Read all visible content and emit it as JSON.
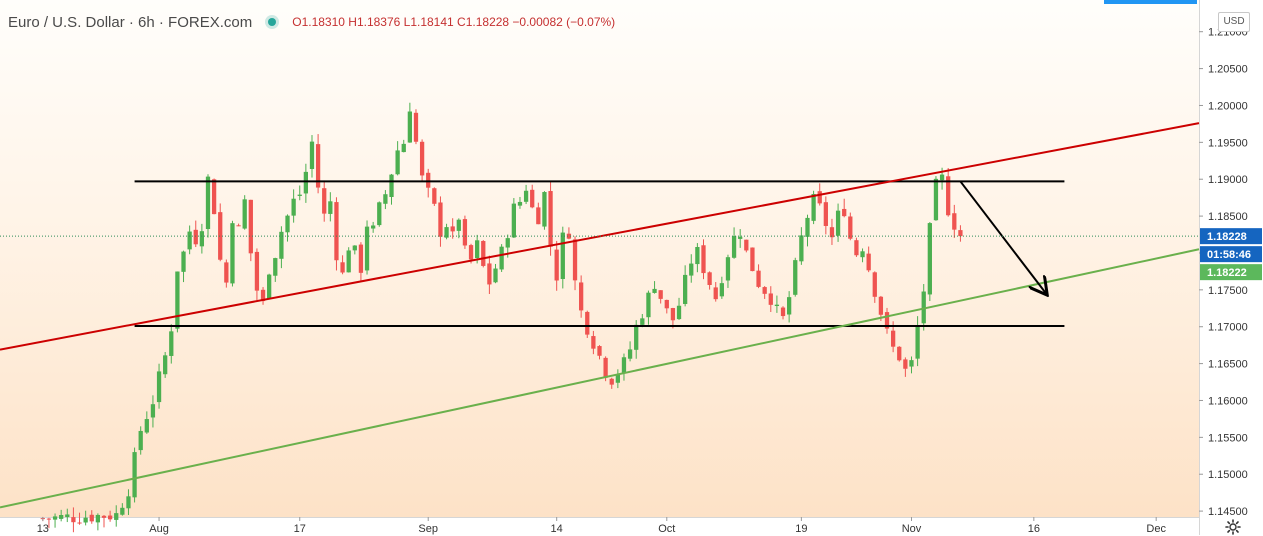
{
  "header": {
    "title": "Euro / U.S. Dollar · 6h · FOREX.com",
    "ohlc": "O1.18310  H1.18376  L1.18141  C1.18228  −0.00082 (−0.07%)"
  },
  "currency_button": "USD",
  "price_tags": {
    "last": "1.18228",
    "countdown": "01:58:46",
    "bid": "1.18222"
  },
  "colors": {
    "up": "#4caf50",
    "down": "#ef5350",
    "resistance_trendline": "#cc0000",
    "support_trendline": "#6ab04c",
    "range_lines": "#000000",
    "last_price_tag": "#1565c0",
    "bid_tag": "#5cb85c"
  },
  "icons": [
    "status-dot-icon",
    "settings-gear-icon"
  ],
  "chart_data": {
    "type": "candlestick",
    "symbol": "EURUSD",
    "interval": "6h",
    "yticks": [
      "1.21000",
      "1.20500",
      "1.20000",
      "1.19500",
      "1.19000",
      "1.18500",
      "1.18000",
      "1.17500",
      "1.17000",
      "1.16500",
      "1.16000",
      "1.15500",
      "1.15000",
      "1.14500"
    ],
    "ytick_values": [
      1.21,
      1.205,
      1.2,
      1.195,
      1.19,
      1.185,
      1.18,
      1.175,
      1.17,
      1.165,
      1.16,
      1.155,
      1.15,
      1.145
    ],
    "xticks": [
      "13",
      "Aug",
      "17",
      "Sep",
      "14",
      "Oct",
      "19",
      "Nov",
      "16",
      "Dec"
    ],
    "xtick_values": [
      0,
      19,
      42,
      63,
      84,
      102,
      124,
      142,
      162,
      182
    ],
    "x_range": [
      -7,
      189
    ],
    "y_range": [
      1.1442,
      1.2143
    ],
    "last_price": 1.18228,
    "bid_price": 1.18222,
    "anchors": [
      [
        0,
        1.144
      ],
      [
        12,
        1.1445
      ],
      [
        14,
        1.148
      ],
      [
        15,
        1.152
      ],
      [
        16,
        1.156
      ],
      [
        18,
        1.16
      ],
      [
        20,
        1.166
      ],
      [
        21,
        1.17
      ],
      [
        22,
        1.178
      ],
      [
        23,
        1.18
      ],
      [
        24,
        1.183
      ],
      [
        25,
        1.182
      ],
      [
        26,
        1.184
      ],
      [
        27,
        1.19
      ],
      [
        28,
        1.186
      ],
      [
        29,
        1.179
      ],
      [
        30,
        1.176
      ],
      [
        31,
        1.185
      ],
      [
        32,
        1.183
      ],
      [
        33,
        1.187
      ],
      [
        34,
        1.18
      ],
      [
        35,
        1.175
      ],
      [
        36,
        1.173
      ],
      [
        37,
        1.178
      ],
      [
        38,
        1.18
      ],
      [
        39,
        1.183
      ],
      [
        40,
        1.185
      ],
      [
        41,
        1.187
      ],
      [
        42,
        1.188
      ],
      [
        43,
        1.191
      ],
      [
        44,
        1.195
      ],
      [
        45,
        1.189
      ],
      [
        46,
        1.185
      ],
      [
        47,
        1.187
      ],
      [
        48,
        1.18
      ],
      [
        49,
        1.177
      ],
      [
        50,
        1.181
      ],
      [
        51,
        1.18
      ],
      [
        52,
        1.178
      ],
      [
        53,
        1.184
      ],
      [
        54,
        1.183
      ],
      [
        55,
        1.186
      ],
      [
        56,
        1.188
      ],
      [
        57,
        1.191
      ],
      [
        58,
        1.194
      ],
      [
        59,
        1.195
      ],
      [
        60,
        1.2
      ],
      [
        61,
        1.195
      ],
      [
        62,
        1.19
      ],
      [
        63,
        1.188
      ],
      [
        64,
        1.186
      ],
      [
        65,
        1.183
      ],
      [
        66,
        1.184
      ],
      [
        67,
        1.182
      ],
      [
        68,
        1.185
      ],
      [
        69,
        1.18
      ],
      [
        70,
        1.179
      ],
      [
        71,
        1.181
      ],
      [
        72,
        1.178
      ],
      [
        73,
        1.176
      ],
      [
        74,
        1.178
      ],
      [
        75,
        1.18
      ],
      [
        76,
        1.183
      ],
      [
        77,
        1.186
      ],
      [
        78,
        1.187
      ],
      [
        79,
        1.189
      ],
      [
        80,
        1.186
      ],
      [
        81,
        1.185
      ],
      [
        82,
        1.188
      ],
      [
        83,
        1.181
      ],
      [
        84,
        1.177
      ],
      [
        85,
        1.182
      ],
      [
        86,
        1.183
      ],
      [
        87,
        1.176
      ],
      [
        88,
        1.172
      ],
      [
        89,
        1.17
      ],
      [
        90,
        1.168
      ],
      [
        91,
        1.166
      ],
      [
        92,
        1.164
      ],
      [
        93,
        1.163
      ],
      [
        94,
        1.164
      ],
      [
        95,
        1.165
      ],
      [
        96,
        1.167
      ],
      [
        97,
        1.17
      ],
      [
        98,
        1.172
      ],
      [
        99,
        1.174
      ],
      [
        100,
        1.176
      ],
      [
        101,
        1.174
      ],
      [
        102,
        1.172
      ],
      [
        103,
        1.171
      ],
      [
        104,
        1.173
      ],
      [
        105,
        1.176
      ],
      [
        106,
        1.179
      ],
      [
        107,
        1.18
      ],
      [
        108,
        1.178
      ],
      [
        109,
        1.176
      ],
      [
        110,
        1.174
      ],
      [
        111,
        1.177
      ],
      [
        112,
        1.18
      ],
      [
        113,
        1.182
      ],
      [
        114,
        1.183
      ],
      [
        115,
        1.18
      ],
      [
        116,
        1.178
      ],
      [
        117,
        1.176
      ],
      [
        118,
        1.175
      ],
      [
        119,
        1.174
      ],
      [
        120,
        1.172
      ],
      [
        121,
        1.171
      ],
      [
        122,
        1.174
      ],
      [
        123,
        1.178
      ],
      [
        124,
        1.182
      ],
      [
        125,
        1.185
      ],
      [
        126,
        1.187
      ],
      [
        127,
        1.186
      ],
      [
        128,
        1.184
      ],
      [
        129,
        1.182
      ],
      [
        130,
        1.185
      ],
      [
        131,
        1.186
      ],
      [
        132,
        1.182
      ],
      [
        133,
        1.18
      ],
      [
        134,
        1.181
      ],
      [
        135,
        1.178
      ],
      [
        136,
        1.175
      ],
      [
        137,
        1.172
      ],
      [
        138,
        1.169
      ],
      [
        139,
        1.167
      ],
      [
        140,
        1.166
      ],
      [
        141,
        1.164
      ],
      [
        142,
        1.165
      ],
      [
        143,
        1.17
      ],
      [
        144,
        1.175
      ],
      [
        145,
        1.183
      ],
      [
        146,
        1.189
      ],
      [
        147,
        1.19
      ],
      [
        148,
        1.186
      ],
      [
        149,
        1.184
      ],
      [
        150,
        1.18228
      ]
    ],
    "drawings": [
      {
        "kind": "horizontal-segment",
        "name": "range-top-line",
        "x": [
          15,
          167
        ],
        "y": 1.1897,
        "color": "#000000"
      },
      {
        "kind": "horizontal-segment",
        "name": "range-bottom-line",
        "x": [
          15,
          167
        ],
        "y": 1.1701,
        "color": "#000000"
      },
      {
        "kind": "trendline",
        "name": "red-trendline",
        "points": [
          [
            -7,
            1.1669
          ],
          [
            189,
            1.1976
          ]
        ],
        "color": "#cc0000"
      },
      {
        "kind": "trendline",
        "name": "green-trendline",
        "points": [
          [
            -7,
            1.1455
          ],
          [
            189,
            1.1805
          ]
        ],
        "color": "#6ab04c"
      },
      {
        "kind": "arrow",
        "name": "forecast-arrow",
        "points": [
          [
            150,
            1.1897
          ],
          [
            164,
            1.1745
          ]
        ],
        "color": "#000000"
      },
      {
        "kind": "horizontal-line",
        "name": "last-price-line",
        "y": 1.18228,
        "color": "#2e8b57",
        "style": "dotted"
      }
    ]
  }
}
